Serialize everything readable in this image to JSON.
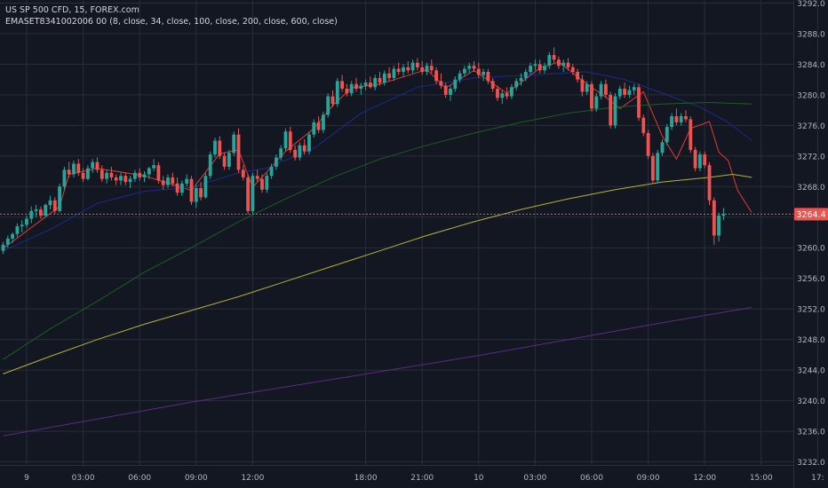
{
  "legend": {
    "symbol_line": "US SP 500 CFD, 15, FOREX.com",
    "indicator_line": "EMASET8341002006 00 (8, close, 34, close, 100, close, 200, close, 600, close)"
  },
  "colors": {
    "background": "#131722",
    "grid": "#2a2e39",
    "axis_text": "#b2b5be",
    "up": "#26a69a",
    "down": "#ef5350",
    "ema8": "#e53935",
    "ema34": "#1e2a8a",
    "ema100": "#1b5e20",
    "ema200": "#b7b22e",
    "ema600": "#5e2a84",
    "last_price_line": "#ef5350",
    "last_price_label_bg": "#ef5350",
    "last_price_label_text": "#ffffff"
  },
  "chart_data": {
    "type": "candlestick",
    "symbol": "US SP 500 CFD",
    "interval": "15",
    "source": "FOREX.com",
    "last_price": "3264.4",
    "y_ticks": [
      "3292.0",
      "3288.0",
      "3284.0",
      "3280.0",
      "3276.0",
      "3272.0",
      "3268.0",
      "3264.0",
      "3260.0",
      "3256.0",
      "3252.0",
      "3248.0",
      "3244.0",
      "3240.0",
      "3236.0",
      "3232.0"
    ],
    "ylim": [
      3231.6,
      3292.4
    ],
    "x_ticks": [
      "9",
      "03:00",
      "06:00",
      "09:00",
      "12:00",
      "18:00",
      "21:00",
      "10",
      "03:00",
      "06:00",
      "09:00",
      "12:00",
      "15:00",
      "17:"
    ],
    "x_tick_index": [
      5,
      17,
      29,
      41,
      53,
      77,
      89,
      101,
      113,
      125,
      137,
      149,
      161,
      173
    ],
    "candles": [
      [
        3259.6,
        3260.8,
        3259.2,
        3260.4
      ],
      [
        3260.4,
        3261.6,
        3260.0,
        3261.2
      ],
      [
        3261.2,
        3262.0,
        3260.6,
        3261.8
      ],
      [
        3261.8,
        3263.2,
        3261.4,
        3262.8
      ],
      [
        3262.8,
        3263.6,
        3262.0,
        3263.0
      ],
      [
        3263.0,
        3264.2,
        3262.6,
        3263.8
      ],
      [
        3263.8,
        3265.4,
        3263.2,
        3264.8
      ],
      [
        3264.8,
        3265.6,
        3264.0,
        3265.0
      ],
      [
        3265.0,
        3265.4,
        3263.8,
        3264.2
      ],
      [
        3264.2,
        3265.8,
        3264.0,
        3265.6
      ],
      [
        3265.6,
        3266.8,
        3265.0,
        3266.2
      ],
      [
        3266.2,
        3266.6,
        3264.4,
        3264.8
      ],
      [
        3264.8,
        3268.4,
        3264.6,
        3268.0
      ],
      [
        3268.0,
        3270.6,
        3267.6,
        3270.2
      ],
      [
        3270.2,
        3271.2,
        3269.2,
        3269.6
      ],
      [
        3269.6,
        3271.4,
        3269.2,
        3271.0
      ],
      [
        3271.0,
        3271.6,
        3269.4,
        3269.8
      ],
      [
        3269.8,
        3270.4,
        3268.6,
        3269.0
      ],
      [
        3269.0,
        3270.8,
        3268.8,
        3270.4
      ],
      [
        3270.4,
        3271.6,
        3269.8,
        3271.2
      ],
      [
        3271.2,
        3271.8,
        3269.8,
        3270.2
      ],
      [
        3270.2,
        3270.8,
        3268.6,
        3269.0
      ],
      [
        3269.0,
        3270.2,
        3268.4,
        3269.8
      ],
      [
        3269.8,
        3270.6,
        3268.8,
        3269.2
      ],
      [
        3269.2,
        3269.6,
        3268.2,
        3268.8
      ],
      [
        3268.8,
        3269.8,
        3268.2,
        3269.4
      ],
      [
        3269.4,
        3269.8,
        3268.2,
        3268.6
      ],
      [
        3268.6,
        3269.4,
        3267.8,
        3269.0
      ],
      [
        3269.0,
        3270.2,
        3268.6,
        3269.8
      ],
      [
        3269.8,
        3270.4,
        3268.8,
        3269.2
      ],
      [
        3269.2,
        3270.0,
        3268.6,
        3269.6
      ],
      [
        3269.6,
        3270.6,
        3269.0,
        3270.4
      ],
      [
        3270.4,
        3271.6,
        3270.0,
        3270.8
      ],
      [
        3270.8,
        3271.2,
        3268.4,
        3268.8
      ],
      [
        3268.8,
        3269.4,
        3267.6,
        3268.2
      ],
      [
        3268.2,
        3269.6,
        3267.8,
        3269.2
      ],
      [
        3269.2,
        3269.8,
        3268.0,
        3268.4
      ],
      [
        3268.4,
        3269.2,
        3266.8,
        3267.2
      ],
      [
        3267.2,
        3268.8,
        3266.8,
        3268.4
      ],
      [
        3268.4,
        3269.6,
        3268.0,
        3269.0
      ],
      [
        3269.0,
        3269.4,
        3265.6,
        3266.0
      ],
      [
        3266.0,
        3268.2,
        3265.2,
        3267.8
      ],
      [
        3267.8,
        3268.6,
        3266.2,
        3266.6
      ],
      [
        3266.6,
        3269.8,
        3266.4,
        3269.4
      ],
      [
        3269.4,
        3272.6,
        3269.0,
        3272.2
      ],
      [
        3272.2,
        3274.4,
        3271.8,
        3274.0
      ],
      [
        3274.0,
        3274.6,
        3271.6,
        3272.0
      ],
      [
        3272.0,
        3272.4,
        3270.2,
        3270.6
      ],
      [
        3270.6,
        3272.8,
        3270.2,
        3272.4
      ],
      [
        3272.4,
        3275.2,
        3272.0,
        3274.8
      ],
      [
        3274.8,
        3275.6,
        3269.8,
        3270.2
      ],
      [
        3270.2,
        3270.8,
        3268.8,
        3269.2
      ],
      [
        3269.2,
        3269.6,
        3264.4,
        3264.8
      ],
      [
        3264.8,
        3269.8,
        3264.4,
        3269.4
      ],
      [
        3269.4,
        3270.2,
        3268.6,
        3269.0
      ],
      [
        3269.0,
        3269.6,
        3267.2,
        3267.6
      ],
      [
        3267.6,
        3269.8,
        3267.2,
        3269.4
      ],
      [
        3269.4,
        3271.0,
        3269.0,
        3270.6
      ],
      [
        3270.6,
        3272.2,
        3270.2,
        3271.8
      ],
      [
        3271.8,
        3273.4,
        3271.4,
        3273.0
      ],
      [
        3273.0,
        3275.6,
        3272.6,
        3275.2
      ],
      [
        3275.2,
        3275.8,
        3272.4,
        3272.8
      ],
      [
        3272.8,
        3273.4,
        3271.4,
        3271.8
      ],
      [
        3271.8,
        3273.8,
        3271.4,
        3273.4
      ],
      [
        3273.4,
        3274.2,
        3272.2,
        3272.6
      ],
      [
        3272.6,
        3275.2,
        3272.2,
        3274.8
      ],
      [
        3274.8,
        3276.8,
        3274.4,
        3276.4
      ],
      [
        3276.4,
        3277.2,
        3275.0,
        3275.4
      ],
      [
        3275.4,
        3277.8,
        3275.0,
        3277.4
      ],
      [
        3277.4,
        3280.2,
        3277.0,
        3279.8
      ],
      [
        3279.8,
        3280.6,
        3278.4,
        3278.8
      ],
      [
        3278.8,
        3282.2,
        3278.4,
        3281.8
      ],
      [
        3281.8,
        3282.6,
        3280.4,
        3280.8
      ],
      [
        3280.8,
        3281.4,
        3279.8,
        3280.2
      ],
      [
        3280.2,
        3281.8,
        3279.8,
        3281.4
      ],
      [
        3281.4,
        3282.2,
        3280.4,
        3280.8
      ],
      [
        3280.8,
        3281.6,
        3280.0,
        3281.2
      ],
      [
        3281.2,
        3282.0,
        3280.6,
        3281.6
      ],
      [
        3281.6,
        3282.4,
        3280.8,
        3281.0
      ],
      [
        3281.0,
        3282.6,
        3280.6,
        3282.2
      ],
      [
        3282.2,
        3283.0,
        3281.2,
        3281.6
      ],
      [
        3281.6,
        3283.2,
        3281.2,
        3282.8
      ],
      [
        3282.8,
        3283.6,
        3281.8,
        3282.2
      ],
      [
        3282.2,
        3283.8,
        3281.8,
        3283.4
      ],
      [
        3283.4,
        3284.2,
        3282.6,
        3283.0
      ],
      [
        3283.0,
        3284.0,
        3282.4,
        3283.6
      ],
      [
        3283.6,
        3284.4,
        3282.8,
        3283.2
      ],
      [
        3283.2,
        3284.6,
        3282.8,
        3284.2
      ],
      [
        3284.2,
        3284.8,
        3283.2,
        3283.6
      ],
      [
        3283.6,
        3284.4,
        3282.6,
        3283.0
      ],
      [
        3283.0,
        3284.2,
        3282.6,
        3283.8
      ],
      [
        3283.8,
        3284.6,
        3282.8,
        3283.2
      ],
      [
        3283.2,
        3283.6,
        3281.4,
        3281.8
      ],
      [
        3281.8,
        3282.8,
        3280.8,
        3281.2
      ],
      [
        3281.2,
        3281.6,
        3279.6,
        3280.0
      ],
      [
        3280.0,
        3281.2,
        3279.2,
        3280.8
      ],
      [
        3280.8,
        3282.4,
        3280.4,
        3282.0
      ],
      [
        3282.0,
        3283.2,
        3281.6,
        3282.8
      ],
      [
        3282.8,
        3283.8,
        3282.4,
        3283.4
      ],
      [
        3283.4,
        3284.2,
        3282.8,
        3283.8
      ],
      [
        3283.8,
        3284.4,
        3283.0,
        3283.4
      ],
      [
        3283.4,
        3284.2,
        3282.2,
        3282.6
      ],
      [
        3282.6,
        3283.4,
        3281.8,
        3283.0
      ],
      [
        3283.0,
        3283.4,
        3281.4,
        3281.8
      ],
      [
        3281.8,
        3282.2,
        3280.4,
        3280.8
      ],
      [
        3280.8,
        3281.2,
        3279.2,
        3279.6
      ],
      [
        3279.6,
        3280.6,
        3278.8,
        3280.2
      ],
      [
        3280.2,
        3281.0,
        3279.4,
        3279.8
      ],
      [
        3279.8,
        3281.4,
        3279.4,
        3281.0
      ],
      [
        3281.0,
        3282.2,
        3280.6,
        3281.8
      ],
      [
        3281.8,
        3282.8,
        3281.2,
        3282.2
      ],
      [
        3282.2,
        3283.4,
        3281.8,
        3283.0
      ],
      [
        3283.0,
        3284.2,
        3282.6,
        3283.8
      ],
      [
        3283.8,
        3284.6,
        3283.2,
        3284.0
      ],
      [
        3284.0,
        3284.6,
        3282.8,
        3283.2
      ],
      [
        3283.2,
        3284.2,
        3282.8,
        3283.8
      ],
      [
        3283.8,
        3285.6,
        3283.4,
        3285.2
      ],
      [
        3285.2,
        3286.2,
        3284.2,
        3284.6
      ],
      [
        3284.6,
        3285.0,
        3283.4,
        3283.8
      ],
      [
        3283.8,
        3284.6,
        3283.0,
        3284.2
      ],
      [
        3284.2,
        3284.8,
        3283.2,
        3283.6
      ],
      [
        3283.6,
        3284.0,
        3282.6,
        3283.0
      ],
      [
        3283.0,
        3283.4,
        3281.6,
        3282.0
      ],
      [
        3282.0,
        3282.6,
        3279.8,
        3280.4
      ],
      [
        3280.4,
        3281.8,
        3280.0,
        3281.4
      ],
      [
        3281.4,
        3281.8,
        3277.8,
        3278.2
      ],
      [
        3278.2,
        3280.2,
        3277.8,
        3279.8
      ],
      [
        3279.8,
        3281.8,
        3279.4,
        3281.4
      ],
      [
        3281.4,
        3282.0,
        3279.6,
        3280.0
      ],
      [
        3280.0,
        3280.4,
        3275.6,
        3276.0
      ],
      [
        3276.0,
        3280.2,
        3275.6,
        3279.8
      ],
      [
        3279.8,
        3281.2,
        3279.4,
        3280.8
      ],
      [
        3280.8,
        3281.6,
        3279.6,
        3280.0
      ],
      [
        3280.0,
        3281.2,
        3279.6,
        3280.6
      ],
      [
        3280.6,
        3281.4,
        3280.0,
        3281.0
      ],
      [
        3281.0,
        3281.4,
        3276.6,
        3277.0
      ],
      [
        3277.0,
        3277.4,
        3274.6,
        3275.0
      ],
      [
        3275.0,
        3275.4,
        3271.6,
        3272.0
      ],
      [
        3272.0,
        3272.4,
        3268.4,
        3268.8
      ],
      [
        3268.8,
        3272.8,
        3268.4,
        3272.4
      ],
      [
        3272.4,
        3274.2,
        3272.0,
        3273.8
      ],
      [
        3273.8,
        3276.2,
        3273.4,
        3275.8
      ],
      [
        3275.8,
        3277.6,
        3275.4,
        3277.2
      ],
      [
        3277.2,
        3278.2,
        3276.0,
        3276.4
      ],
      [
        3276.4,
        3277.6,
        3276.0,
        3277.2
      ],
      [
        3277.2,
        3278.0,
        3276.4,
        3276.8
      ],
      [
        3276.8,
        3277.2,
        3272.4,
        3272.8
      ],
      [
        3272.8,
        3273.2,
        3270.0,
        3270.4
      ],
      [
        3270.4,
        3272.6,
        3270.0,
        3272.2
      ],
      [
        3272.2,
        3272.6,
        3270.4,
        3270.8
      ],
      [
        3270.8,
        3271.2,
        3265.6,
        3266.2
      ],
      [
        3266.2,
        3266.6,
        3260.4,
        3261.6
      ],
      [
        3261.6,
        3264.6,
        3260.8,
        3264.2
      ],
      [
        3264.2,
        3265.2,
        3263.6,
        3264.4
      ]
    ],
    "ema_series": [
      {
        "name": "8",
        "color_key": "ema8",
        "points": [
          [
            0,
            3259.9
          ],
          [
            12,
            3265.4
          ],
          [
            14,
            3269.6
          ],
          [
            20,
            3270.4
          ],
          [
            30,
            3269.4
          ],
          [
            40,
            3267.5
          ],
          [
            46,
            3272.3
          ],
          [
            50,
            3272.8
          ],
          [
            53,
            3267.9
          ],
          [
            60,
            3272.6
          ],
          [
            66,
            3275.6
          ],
          [
            70,
            3278.6
          ],
          [
            74,
            3280.9
          ],
          [
            80,
            3281.4
          ],
          [
            90,
            3283.3
          ],
          [
            94,
            3280.9
          ],
          [
            100,
            3283.2
          ],
          [
            107,
            3280.2
          ],
          [
            114,
            3283.5
          ],
          [
            118,
            3284.3
          ],
          [
            124,
            3281.4
          ],
          [
            128,
            3279.7
          ],
          [
            131,
            3278.2
          ],
          [
            136,
            3280.4
          ],
          [
            140,
            3274.6
          ],
          [
            143,
            3271.6
          ],
          [
            146,
            3275.6
          ],
          [
            150,
            3276.5
          ],
          [
            152,
            3272.5
          ],
          [
            154,
            3271.4
          ],
          [
            156,
            3267.5
          ],
          [
            159,
            3264.6
          ]
        ]
      },
      {
        "name": "34",
        "color_key": "ema34",
        "points": [
          [
            0,
            3259.6
          ],
          [
            10,
            3262.4
          ],
          [
            20,
            3265.8
          ],
          [
            30,
            3267.4
          ],
          [
            40,
            3267.9
          ],
          [
            50,
            3269.8
          ],
          [
            56,
            3270.4
          ],
          [
            66,
            3273.0
          ],
          [
            76,
            3277.6
          ],
          [
            88,
            3281.0
          ],
          [
            100,
            3282.2
          ],
          [
            112,
            3282.6
          ],
          [
            124,
            3283.0
          ],
          [
            132,
            3282.0
          ],
          [
            140,
            3280.2
          ],
          [
            148,
            3278.4
          ],
          [
            154,
            3276.4
          ],
          [
            159,
            3274.0
          ]
        ]
      },
      {
        "name": "100",
        "color_key": "ema100",
        "points": [
          [
            0,
            3245.4
          ],
          [
            10,
            3249.4
          ],
          [
            20,
            3253.0
          ],
          [
            30,
            3256.8
          ],
          [
            40,
            3260.0
          ],
          [
            50,
            3263.4
          ],
          [
            60,
            3266.4
          ],
          [
            70,
            3269.2
          ],
          [
            80,
            3271.6
          ],
          [
            90,
            3273.4
          ],
          [
            100,
            3275.0
          ],
          [
            110,
            3276.4
          ],
          [
            120,
            3277.6
          ],
          [
            130,
            3278.4
          ],
          [
            140,
            3278.8
          ],
          [
            150,
            3279.0
          ],
          [
            159,
            3278.8
          ]
        ]
      },
      {
        "name": "200",
        "color_key": "ema200",
        "points": [
          [
            0,
            3243.5
          ],
          [
            10,
            3245.8
          ],
          [
            20,
            3248.0
          ],
          [
            30,
            3250.0
          ],
          [
            40,
            3251.8
          ],
          [
            50,
            3253.6
          ],
          [
            60,
            3255.6
          ],
          [
            70,
            3257.6
          ],
          [
            80,
            3259.6
          ],
          [
            90,
            3261.6
          ],
          [
            100,
            3263.4
          ],
          [
            110,
            3265.0
          ],
          [
            120,
            3266.4
          ],
          [
            130,
            3267.6
          ],
          [
            140,
            3268.6
          ],
          [
            150,
            3269.2
          ],
          [
            155,
            3269.6
          ],
          [
            159,
            3269.2
          ]
        ]
      },
      {
        "name": "600",
        "color_key": "ema600",
        "points": [
          [
            0,
            3235.4
          ],
          [
            20,
            3237.6
          ],
          [
            40,
            3239.8
          ],
          [
            60,
            3241.8
          ],
          [
            80,
            3243.8
          ],
          [
            100,
            3245.8
          ],
          [
            120,
            3248.0
          ],
          [
            140,
            3250.2
          ],
          [
            159,
            3252.2
          ]
        ]
      }
    ]
  }
}
